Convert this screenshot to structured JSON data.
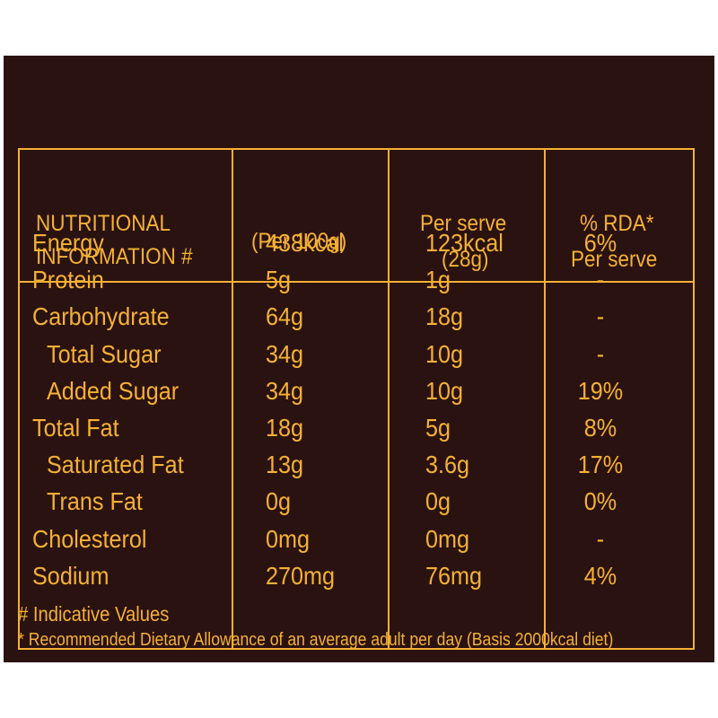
{
  "header": {
    "col1_line1": "NUTRITIONAL",
    "col1_line2": "INFORMATION #",
    "col2": "(Per 100g)",
    "col3_line1": "Per serve",
    "col3_line2": "(28g)",
    "col4_line1": "% RDA*",
    "col4_line2": "Per serve"
  },
  "rows": [
    {
      "name": "Energy",
      "per100": "438kcal",
      "serve": "123kcal",
      "rda": "6%"
    },
    {
      "name": "Protein",
      "per100": "5g",
      "serve": "1g",
      "rda": "-"
    },
    {
      "name": "Carbohydrate",
      "per100": "64g",
      "serve": "18g",
      "rda": "-"
    },
    {
      "name": "Total Sugar",
      "per100": "34g",
      "serve": "10g",
      "rda": "-"
    },
    {
      "name": "Added Sugar",
      "per100": "34g",
      "serve": "10g",
      "rda": "19%"
    },
    {
      "name": "Total Fat",
      "per100": "18g",
      "serve": "5g",
      "rda": "8%"
    },
    {
      "name": "Saturated Fat",
      "per100": "13g",
      "serve": "3.6g",
      "rda": "17%"
    },
    {
      "name": "Trans Fat",
      "per100": "0g",
      "serve": "0g",
      "rda": "0%"
    },
    {
      "name": "Cholesterol",
      "per100": "0mg",
      "serve": "0mg",
      "rda": "-"
    },
    {
      "name": "Sodium",
      "per100": "270mg",
      "serve": "76mg",
      "rda": "4%"
    }
  ],
  "footnotes": {
    "indicative": "# Indicative Values",
    "rda_note": "* Recommended Dietary Allowance of an average adult per day (Basis 2000kcal diet)"
  },
  "colors": {
    "background": "#2a1210",
    "text": "#f5b135"
  }
}
